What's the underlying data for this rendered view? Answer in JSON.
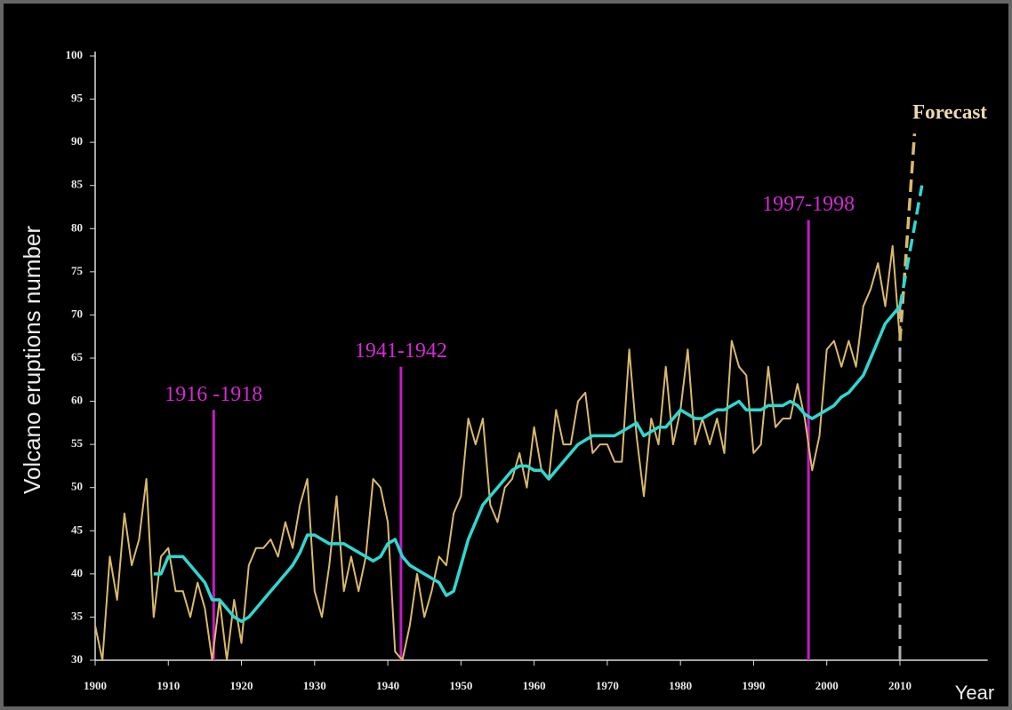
{
  "chart_data": {
    "type": "line",
    "ylabel": "Volcano eruptions number",
    "xlabel": "Year",
    "xlim": [
      1900,
      2022
    ],
    "xticks": [
      1900,
      1910,
      1920,
      1930,
      1940,
      1950,
      1960,
      1970,
      1980,
      1990,
      2000,
      2010
    ],
    "ylim": [
      30,
      100
    ],
    "yticks": [
      30,
      35,
      40,
      45,
      50,
      55,
      60,
      65,
      70,
      75,
      80,
      85,
      90,
      95,
      100
    ],
    "x": [
      1900,
      1901,
      1902,
      1903,
      1904,
      1905,
      1906,
      1907,
      1908,
      1909,
      1910,
      1911,
      1912,
      1913,
      1914,
      1915,
      1916,
      1917,
      1918,
      1919,
      1920,
      1921,
      1922,
      1923,
      1924,
      1925,
      1926,
      1927,
      1928,
      1929,
      1930,
      1931,
      1932,
      1933,
      1934,
      1935,
      1936,
      1937,
      1938,
      1939,
      1940,
      1941,
      1942,
      1943,
      1944,
      1945,
      1946,
      1947,
      1948,
      1949,
      1950,
      1951,
      1952,
      1953,
      1954,
      1955,
      1956,
      1957,
      1958,
      1959,
      1960,
      1961,
      1962,
      1963,
      1964,
      1965,
      1966,
      1967,
      1968,
      1969,
      1970,
      1971,
      1972,
      1973,
      1974,
      1975,
      1976,
      1977,
      1978,
      1979,
      1980,
      1981,
      1982,
      1983,
      1984,
      1985,
      1986,
      1987,
      1988,
      1989,
      1990,
      1991,
      1992,
      1993,
      1994,
      1995,
      1996,
      1997,
      1998,
      1999,
      2000,
      2001,
      2002,
      2003,
      2004,
      2005,
      2006,
      2007,
      2008,
      2009,
      2010
    ],
    "series": [
      {
        "color": "#d9b96c",
        "values": [
          34,
          30,
          42,
          37,
          47,
          41,
          44,
          51,
          35,
          42,
          43,
          38,
          38,
          35,
          39,
          36,
          30,
          37,
          30,
          37,
          32,
          41,
          43,
          43,
          44,
          42,
          46,
          43,
          48,
          51,
          38,
          35,
          41,
          49,
          38,
          42,
          38,
          42,
          51,
          50,
          46,
          31,
          30,
          34,
          40,
          35,
          38,
          42,
          41,
          47,
          49,
          58,
          55,
          58,
          48,
          46,
          50,
          51,
          54,
          50,
          57,
          52,
          51,
          59,
          55,
          55,
          60,
          61,
          54,
          55,
          55,
          53,
          53,
          66,
          56,
          49,
          58,
          55,
          64,
          55,
          59,
          66,
          55,
          58,
          55,
          58,
          54,
          67,
          64,
          63,
          54,
          55,
          64,
          57,
          58,
          58,
          62,
          58,
          52,
          56,
          66,
          67,
          64,
          67,
          64,
          71,
          73,
          76,
          71,
          78,
          67
        ]
      },
      {
        "color": "#2fd8d2",
        "values": [
          null,
          null,
          null,
          null,
          null,
          null,
          null,
          null,
          40,
          40,
          42,
          42,
          42,
          41,
          40,
          39,
          37,
          37,
          36,
          35,
          34.5,
          35,
          36,
          37,
          38,
          39,
          40,
          41,
          42.5,
          44.5,
          44.5,
          44,
          43.5,
          43.5,
          43.5,
          43,
          42.5,
          42,
          41.5,
          42,
          43.5,
          44,
          42,
          41,
          40.5,
          40,
          39.5,
          39,
          37.5,
          38,
          41,
          44,
          46,
          48,
          49,
          50,
          51,
          52,
          52.5,
          52.5,
          52,
          52,
          51,
          52,
          53,
          54,
          55,
          55.5,
          56,
          56,
          56,
          56,
          56.5,
          57,
          57.5,
          56,
          56.5,
          57,
          57,
          58,
          59,
          58.5,
          58,
          58,
          58.5,
          59,
          59,
          59.5,
          60,
          59,
          59,
          59,
          59.5,
          59.5,
          59.5,
          60,
          59.5,
          58.5,
          58,
          58.5,
          59,
          59.5,
          60.5,
          61,
          62,
          63,
          65,
          67,
          69,
          70,
          71
        ]
      }
    ],
    "forecast": {
      "label": "Forecast",
      "series": [
        {
          "color": "#d9b96c",
          "x": [
            2010,
            2012
          ],
          "values": [
            67,
            91
          ]
        },
        {
          "color": "#2fd8d2",
          "x": [
            2010,
            2013
          ],
          "values": [
            71,
            85
          ]
        }
      ]
    },
    "marker_line": {
      "x": 2010,
      "y": 72,
      "color": "#b0b0b0"
    },
    "annotations": [
      {
        "text": "1916 -1918",
        "x": 1916.2,
        "y": 59,
        "color": "#c41cc4"
      },
      {
        "text": "1941-1942",
        "x": 1941.8,
        "y": 64,
        "color": "#c41cc4"
      },
      {
        "text": "1997-1998",
        "x": 1997.5,
        "y": 81,
        "color": "#c41cc4"
      }
    ]
  }
}
